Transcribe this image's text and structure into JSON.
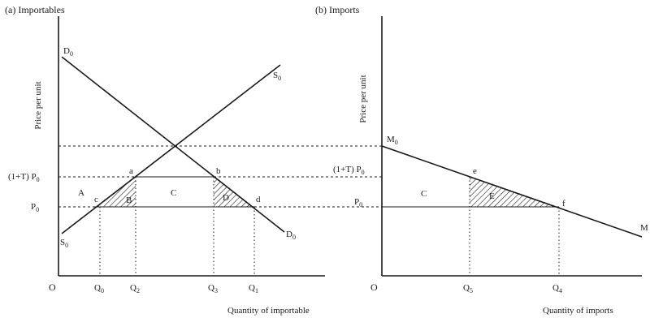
{
  "panel_a": {
    "title": "(a) Importables",
    "y_axis_label": "Price per unit",
    "x_axis_label": "Quantity of importable",
    "origin": "O",
    "demand_label_top": "D",
    "demand_label_top_sub": "0",
    "demand_label_bottom": "D",
    "demand_label_bottom_sub": "0",
    "supply_label_top": "S",
    "supply_label_top_sub": "0",
    "supply_label_bottom": "S",
    "supply_label_bottom_sub": "0",
    "price_tariff": "(1+T) P",
    "price_tariff_sub": "0",
    "price_world": "P",
    "price_world_sub": "0",
    "points": {
      "a": "a",
      "b": "b",
      "c": "c",
      "d": "d"
    },
    "areas": {
      "A": "A",
      "B": "B",
      "C": "C",
      "D": "D"
    },
    "q_labels": [
      {
        "main": "Q",
        "sub": "0"
      },
      {
        "main": "Q",
        "sub": "2"
      },
      {
        "main": "Q",
        "sub": "3"
      },
      {
        "main": "Q",
        "sub": "1"
      }
    ]
  },
  "panel_b": {
    "title": "(b) Imports",
    "y_axis_label": "Price per unit",
    "x_axis_label": "Quantity of imports",
    "origin": "O",
    "curve_label_top": "M",
    "curve_label_top_sub": "0",
    "curve_label_end": "M",
    "price_tariff": "(1+T) P",
    "price_tariff_sub": "0",
    "price_world": "P",
    "price_world_sub": "0",
    "points": {
      "e": "e",
      "f": "f"
    },
    "areas": {
      "C": "C",
      "E": "E"
    },
    "q_labels": [
      {
        "main": "Q",
        "sub": "5"
      },
      {
        "main": "Q",
        "sub": "4"
      }
    ]
  },
  "colors": {
    "ink": "#1a1a1a",
    "background": "#ffffff"
  }
}
